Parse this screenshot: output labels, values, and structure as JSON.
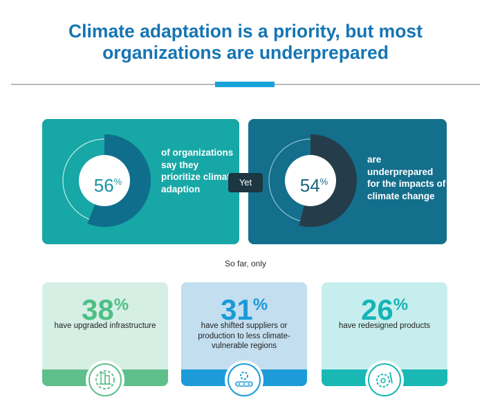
{
  "title": {
    "line1": "Climate adaptation is a priority, but most",
    "line2": "organizations are underprepared"
  },
  "chart_data": [
    {
      "type": "pie",
      "values": [
        56,
        44
      ],
      "label_value": "56",
      "label_unit": "%",
      "description": "of organizations say they prioritize climate adaption",
      "colors": {
        "filled": "#0f6e8c",
        "remaining": "#16a7a6"
      }
    },
    {
      "type": "pie",
      "values": [
        54,
        46
      ],
      "label_value": "54",
      "label_unit": "%",
      "description": "are underprepared for the impacts of climate change",
      "colors": {
        "filled": "#253d4a",
        "remaining": "#136f8c"
      }
    }
  ],
  "connector": "Yet",
  "subheading": "So far, only",
  "stats": [
    {
      "value": "38",
      "unit": "%",
      "description": "have upgraded infrastructure",
      "icon": "building-gear-icon",
      "color": "#4fbf85"
    },
    {
      "value": "31",
      "unit": "%",
      "description": "have shifted suppliers or production to less climate-vulnerable regions",
      "icon": "conveyor-gear-icon",
      "color": "#1a9ad8"
    },
    {
      "value": "26",
      "unit": "%",
      "description": "have redesigned products",
      "icon": "gear-pencil-icon",
      "color": "#16b4b4"
    }
  ]
}
